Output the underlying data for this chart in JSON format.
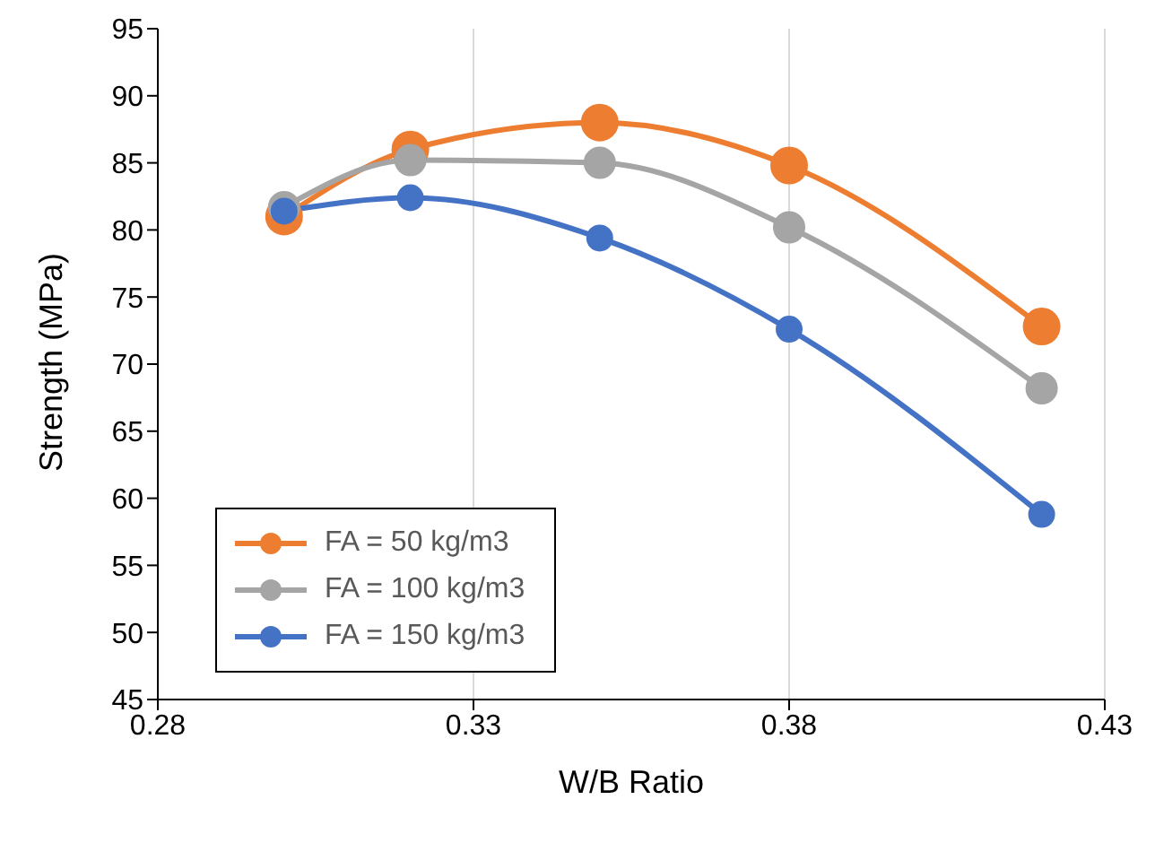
{
  "chart_data": {
    "type": "line",
    "xlabel": "W/B Ratio",
    "ylabel": "Strength (MPa)",
    "x": [
      0.3,
      0.32,
      0.35,
      0.38,
      0.42
    ],
    "series": [
      {
        "name": "FA = 50 kg/m3",
        "color": "#ed7d31",
        "values": [
          81.0,
          86.0,
          88.0,
          84.8,
          72.8
        ]
      },
      {
        "name": "FA = 100 kg/m3",
        "color": "#a5a5a5",
        "values": [
          81.7,
          85.2,
          85.0,
          80.2,
          68.2
        ]
      },
      {
        "name": "FA = 150 kg/m3",
        "color": "#4472c4",
        "values": [
          81.4,
          82.4,
          79.4,
          72.6,
          58.8
        ]
      }
    ],
    "xlim": [
      0.28,
      0.43
    ],
    "xticks": [
      0.28,
      0.33,
      0.38,
      0.43
    ],
    "ylim": [
      45,
      95
    ],
    "yticks": [
      45,
      50,
      55,
      60,
      65,
      70,
      75,
      80,
      85,
      90,
      95
    ],
    "grid": "x",
    "legend": "bottom left",
    "marker": "circle",
    "line_style": "solid"
  }
}
